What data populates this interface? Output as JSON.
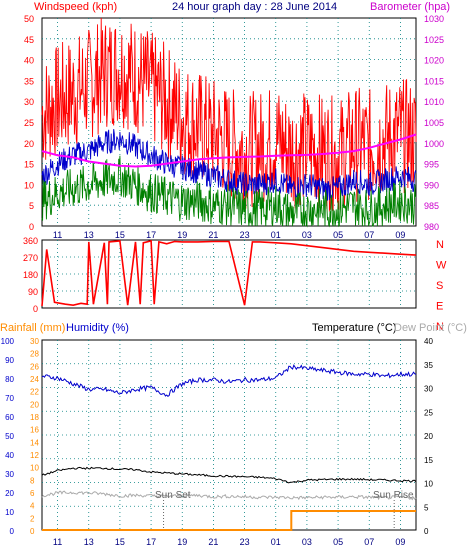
{
  "colors": {
    "wind_axis": "#ff0000",
    "baro_axis": "#cc00cc",
    "title": "#000080",
    "rain": "#ff8c00",
    "humidity": "#0000cc",
    "temperature": "#000000",
    "dewpoint": "#aaaaaa",
    "wind_speed": "#ff0000",
    "wind_avg": "#0000cc",
    "wind_low": "#008000",
    "barometer": "#ff00ff",
    "direction": "#ff0000",
    "frame": "#000000",
    "grid": "#008080"
  },
  "chart_data": [
    {
      "type": "line",
      "title": "24 hour graph day : 28 June 2014",
      "left_axis": {
        "label": "Windspeed (kph)",
        "ticks": [
          "0",
          "5",
          "10",
          "15",
          "20",
          "25",
          "30",
          "35",
          "40",
          "45",
          "50"
        ],
        "ylim": [
          0,
          50
        ]
      },
      "right_axis": {
        "label": "Barometer (hpa)",
        "ticks": [
          "980",
          "985",
          "990",
          "995",
          "1000",
          "1005",
          "1010",
          "1015",
          "1020",
          "1025",
          "1030"
        ],
        "ylim": [
          980,
          1030
        ]
      },
      "x_ticks": [
        "11",
        "13",
        "15",
        "17",
        "19",
        "21",
        "23",
        "01",
        "03",
        "05",
        "07",
        "09"
      ],
      "x": [
        9,
        10,
        11,
        12,
        13,
        14,
        15,
        16,
        17,
        18,
        19,
        20,
        21,
        22,
        23,
        24,
        25,
        26,
        27,
        28,
        29,
        30,
        31,
        32,
        33
      ],
      "series": [
        {
          "values": [
            27,
            30,
            32,
            34,
            37,
            38,
            36,
            33,
            30,
            26,
            24,
            22,
            20,
            18,
            19,
            21,
            18,
            19,
            18,
            17,
            20,
            19,
            21,
            22,
            21
          ]
        },
        {
          "values": [
            12,
            15,
            17,
            18,
            20,
            21,
            19,
            17,
            15,
            14,
            13,
            12,
            11,
            10,
            10,
            11,
            9,
            10,
            9,
            9,
            11,
            10,
            11,
            12,
            11
          ]
        },
        {
          "values": [
            6,
            8,
            9,
            10,
            11,
            12,
            10,
            8,
            7,
            6,
            6,
            5,
            5,
            4,
            4,
            5,
            3,
            4,
            4,
            4,
            5,
            4,
            5,
            6,
            5
          ]
        },
        {
          "values": [
            998,
            997,
            996.5,
            995.5,
            995,
            994.5,
            994.3,
            994.5,
            995,
            995.5,
            996,
            996.3,
            996.5,
            996.6,
            996.7,
            996.9,
            997,
            997.1,
            997.3,
            997.6,
            998,
            998.8,
            999.8,
            1000.8,
            1002
          ]
        }
      ],
      "grid": true
    },
    {
      "type": "line",
      "left_axis": {
        "ticks": [
          "0",
          "90",
          "180",
          "270",
          "360"
        ],
        "ylim": [
          0,
          360
        ]
      },
      "right_axis": {
        "ticks": [
          "N",
          "E",
          "S",
          "W",
          "N"
        ]
      },
      "x_ticks": [],
      "x": [
        9,
        9.3,
        9.8,
        10.5,
        11,
        11.5,
        11.9,
        12,
        12.3,
        13,
        13.2,
        13.3,
        14,
        14.5,
        15,
        15.3,
        15.5,
        16,
        16.2,
        16.5,
        17,
        17.5,
        18,
        19,
        20,
        21,
        22,
        22.5,
        23,
        24,
        25,
        26,
        27,
        28,
        29,
        30,
        31,
        32,
        33
      ],
      "series": [
        {
          "values": [
            10,
            310,
            30,
            20,
            15,
            25,
            20,
            350,
            20,
            345,
            20,
            350,
            355,
            15,
            350,
            20,
            345,
            355,
            20,
            350,
            340,
            352,
            350,
            350,
            352,
            352,
            15,
            350,
            350,
            345,
            340,
            330,
            320,
            310,
            300,
            295,
            290,
            285,
            280
          ]
        }
      ],
      "grid": true
    },
    {
      "type": "line",
      "left_axis_rain": {
        "label": "Rainfall (mm)",
        "ticks": [
          "0",
          "2",
          "4",
          "6",
          "8",
          "10",
          "12",
          "14",
          "16",
          "18",
          "20",
          "22",
          "24",
          "26",
          "28",
          "30"
        ],
        "ylim": [
          0,
          30
        ]
      },
      "left_axis_humidity": {
        "label": "Humidity (%)",
        "ticks": [
          "0",
          "10",
          "20",
          "30",
          "40",
          "50",
          "60",
          "70",
          "80",
          "90",
          "100"
        ],
        "ylim": [
          0,
          100
        ]
      },
      "right_axis": {
        "label_temp": "Temperature (°C)",
        "label_dew": "Dew Point (°C)",
        "ticks": [
          "0",
          "5",
          "10",
          "15",
          "20",
          "25",
          "30",
          "35",
          "40"
        ],
        "ylim": [
          0,
          40
        ]
      },
      "x_ticks": [
        "11",
        "13",
        "15",
        "17",
        "19",
        "21",
        "23",
        "01",
        "03",
        "05",
        "07",
        "09"
      ],
      "annotations": [
        "Sun Set",
        "Sun Rise"
      ],
      "x": [
        9,
        10,
        11,
        12,
        13,
        14,
        15,
        16,
        17,
        18,
        19,
        20,
        21,
        22,
        23,
        24,
        25,
        26,
        27,
        28,
        29,
        30,
        31,
        32,
        33
      ],
      "series": [
        {
          "values": [
            0,
            0,
            0,
            0,
            0,
            0,
            0,
            0,
            0,
            0,
            0,
            0,
            0,
            0,
            0,
            0,
            3,
            3,
            3,
            3,
            3,
            3,
            3,
            3,
            3
          ]
        },
        {
          "values": [
            81,
            80,
            77,
            74,
            74,
            72,
            74,
            75,
            71,
            77,
            79,
            79,
            78,
            79,
            79,
            80,
            86,
            85,
            84,
            83,
            82,
            82,
            81,
            82,
            82
          ]
        },
        {
          "values": [
            11.5,
            12.5,
            13,
            13,
            13,
            12.8,
            12.7,
            12.2,
            12,
            11.8,
            11.6,
            11.4,
            11.3,
            11.2,
            11.1,
            10.8,
            10,
            10.5,
            10.6,
            10.7,
            10.7,
            10.6,
            10.5,
            10.4,
            10.3
          ]
        },
        {
          "values": [
            7.2,
            7.8,
            7.9,
            7.8,
            7.6,
            7.2,
            7.3,
            7.2,
            7.1,
            7.2,
            7.3,
            7.0,
            7.1,
            7.0,
            6.9,
            6.9,
            6.8,
            6.8,
            6.9,
            6.9,
            7.0,
            6.9,
            6.8,
            6.9,
            6.7
          ]
        }
      ],
      "grid": true
    }
  ]
}
